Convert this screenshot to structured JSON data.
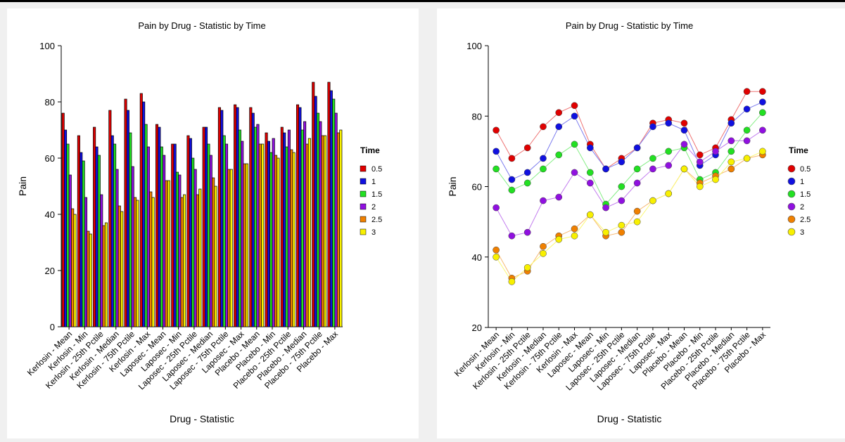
{
  "chart_data": [
    {
      "type": "bar",
      "title": "Pain by Drug - Statistic by Time",
      "xlabel": "Drug - Statistic",
      "ylabel": "Pain",
      "ylim": [
        0,
        100
      ],
      "yticks": [
        0,
        20,
        40,
        60,
        80,
        100
      ],
      "legend": {
        "title": "Time",
        "placement": "right"
      },
      "categories": [
        "Kerlosin - Mean",
        "Kerlosin - Min",
        "Kerlosin - 25th Pctile",
        "Kerlosin - Median",
        "Kerlosin - 75th Pctile",
        "Kerlosin - Max",
        "Laposec - Mean",
        "Laposec - Min",
        "Laposec - 25th Pctile",
        "Laposec - Median",
        "Laposec - 75th Pctile",
        "Laposec - Max",
        "Placebo - Mean",
        "Placebo - Min",
        "Placebo - 25th Pctile",
        "Placebo - Median",
        "Placebo - 75th Pctile",
        "Placebo - Max"
      ],
      "series": [
        {
          "name": "0.5",
          "color": "#e00000",
          "values": [
            76,
            68,
            71,
            77,
            81,
            83,
            72,
            65,
            68,
            71,
            78,
            79,
            78,
            69,
            71,
            79,
            87,
            87
          ]
        },
        {
          "name": "1",
          "color": "#1010e0",
          "values": [
            70,
            62,
            64,
            68,
            77,
            80,
            71,
            65,
            67,
            71,
            77,
            78,
            76,
            66,
            69,
            78,
            82,
            84
          ]
        },
        {
          "name": "1.5",
          "color": "#22e022",
          "values": [
            65,
            59,
            61,
            65,
            69,
            72,
            64,
            55,
            60,
            65,
            68,
            70,
            71,
            62,
            64,
            70,
            76,
            81
          ]
        },
        {
          "name": "2",
          "color": "#9010e0",
          "values": [
            54,
            46,
            47,
            56,
            57,
            64,
            61,
            54,
            56,
            61,
            65,
            66,
            72,
            67,
            70,
            73,
            73,
            76
          ]
        },
        {
          "name": "2.5",
          "color": "#f08000",
          "values": [
            42,
            34,
            36,
            43,
            46,
            48,
            52,
            46,
            47,
            53,
            56,
            58,
            65,
            61,
            63,
            65,
            68,
            69
          ]
        },
        {
          "name": "3",
          "color": "#f8f000",
          "values": [
            40,
            33,
            37,
            41,
            45,
            46,
            52,
            47,
            49,
            50,
            56,
            58,
            65,
            60,
            62,
            67,
            68,
            70
          ]
        }
      ]
    },
    {
      "type": "line",
      "title": "Pain by Drug - Statistic by Time",
      "xlabel": "Drug - Statistic",
      "ylabel": "Pain",
      "ylim": [
        20,
        100
      ],
      "yticks": [
        20,
        40,
        60,
        80,
        100
      ],
      "legend": {
        "title": "Time",
        "placement": "right"
      },
      "categories": [
        "Kerlosin - Mean",
        "Kerlosin - Min",
        "Kerlosin - 25th Pctile",
        "Kerlosin - Median",
        "Kerlosin - 75th Pctile",
        "Kerlosin - Max",
        "Laposec - Mean",
        "Laposec - Min",
        "Laposec - 25th Pctile",
        "Laposec - Median",
        "Laposec - 75th Pctile",
        "Laposec - Max",
        "Placebo - Mean",
        "Placebo - Min",
        "Placebo - 25th Pctile",
        "Placebo - Median",
        "Placebo - 75th Pctile",
        "Placebo - Max"
      ],
      "series": [
        {
          "name": "0.5",
          "color": "#e00000",
          "values": [
            76,
            68,
            71,
            77,
            81,
            83,
            72,
            65,
            68,
            71,
            78,
            79,
            78,
            69,
            71,
            79,
            87,
            87
          ]
        },
        {
          "name": "1",
          "color": "#1010e0",
          "values": [
            70,
            62,
            64,
            68,
            77,
            80,
            71,
            65,
            67,
            71,
            77,
            78,
            76,
            66,
            69,
            78,
            82,
            84
          ]
        },
        {
          "name": "1.5",
          "color": "#22e022",
          "values": [
            65,
            59,
            61,
            65,
            69,
            72,
            64,
            55,
            60,
            65,
            68,
            70,
            71,
            62,
            64,
            70,
            76,
            81
          ]
        },
        {
          "name": "2",
          "color": "#9010e0",
          "values": [
            54,
            46,
            47,
            56,
            57,
            64,
            61,
            54,
            56,
            61,
            65,
            66,
            72,
            67,
            70,
            73,
            73,
            76
          ]
        },
        {
          "name": "2.5",
          "color": "#f08000",
          "values": [
            42,
            34,
            36,
            43,
            46,
            48,
            52,
            46,
            47,
            53,
            56,
            58,
            65,
            61,
            63,
            65,
            68,
            69
          ]
        },
        {
          "name": "3",
          "color": "#f8f000",
          "values": [
            40,
            33,
            37,
            41,
            45,
            46,
            52,
            47,
            49,
            50,
            56,
            58,
            65,
            60,
            62,
            67,
            68,
            70
          ]
        }
      ]
    }
  ]
}
